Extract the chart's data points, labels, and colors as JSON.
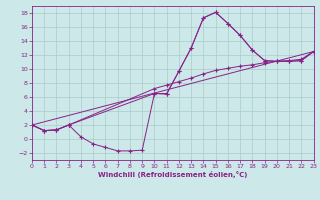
{
  "xlabel": "Windchill (Refroidissement éolien,°C)",
  "bg_color": "#cce8e8",
  "grid_color": "#aacccc",
  "line_color": "#882288",
  "xlim": [
    0,
    23
  ],
  "ylim": [
    -3,
    19
  ],
  "xticks": [
    0,
    1,
    2,
    3,
    4,
    5,
    6,
    7,
    8,
    9,
    10,
    11,
    12,
    13,
    14,
    15,
    16,
    17,
    18,
    19,
    20,
    21,
    22,
    23
  ],
  "yticks": [
    -2,
    0,
    2,
    4,
    6,
    8,
    10,
    12,
    14,
    16,
    18
  ],
  "line1_x": [
    0,
    1,
    2,
    3,
    4,
    5,
    6,
    7,
    8,
    9,
    10,
    11,
    12,
    13,
    14,
    15,
    16,
    17,
    18,
    19,
    20,
    21,
    22,
    23
  ],
  "line1_y": [
    2.0,
    1.2,
    1.3,
    2.0,
    0.3,
    -0.7,
    -1.2,
    -1.7,
    -1.7,
    -1.6,
    6.5,
    6.4,
    9.7,
    13.0,
    17.3,
    18.1,
    16.5,
    14.8,
    12.7,
    11.2,
    11.1,
    11.1,
    11.2,
    12.5
  ],
  "line2_x": [
    0,
    1,
    2,
    3,
    10,
    11,
    12,
    13,
    14,
    15,
    16,
    17,
    18,
    19,
    20,
    21,
    22,
    23
  ],
  "line2_y": [
    2.0,
    1.2,
    1.3,
    2.0,
    7.2,
    7.7,
    8.2,
    8.7,
    9.3,
    9.8,
    10.1,
    10.4,
    10.6,
    10.9,
    11.1,
    11.2,
    11.4,
    12.5
  ],
  "line3_x": [
    0,
    1,
    2,
    3,
    10,
    11,
    12,
    13,
    14,
    15,
    16,
    17,
    18,
    19,
    20,
    21,
    22,
    23
  ],
  "line3_y": [
    2.0,
    1.2,
    1.3,
    2.0,
    6.5,
    6.5,
    9.7,
    13.0,
    17.3,
    18.1,
    16.5,
    14.8,
    12.7,
    11.2,
    11.1,
    11.1,
    11.2,
    12.5
  ],
  "line4_x": [
    0,
    23
  ],
  "line4_y": [
    2.0,
    12.5
  ]
}
